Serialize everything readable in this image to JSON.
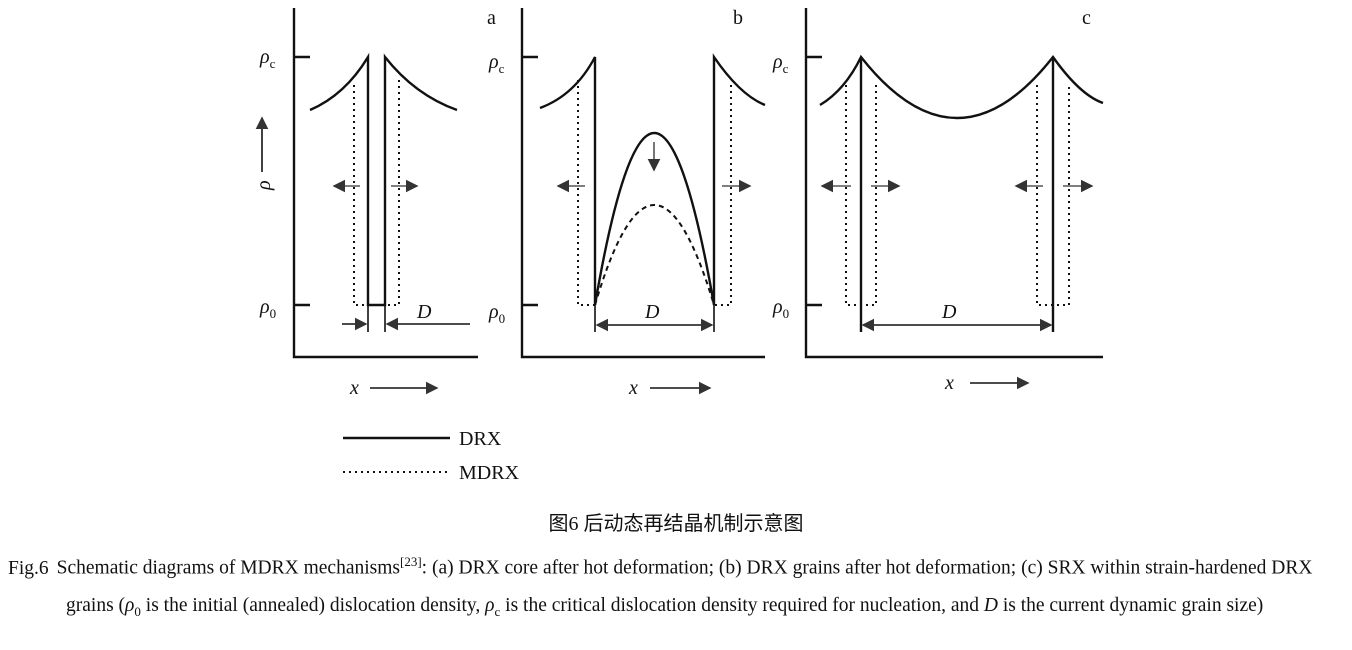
{
  "panels": [
    {
      "label": "a",
      "y_label": "ρ",
      "top_symbol": "ρ",
      "top_sub": "c",
      "bottom_symbol": "ρ",
      "bottom_sub": "0",
      "x_label": "x",
      "size_label": "D"
    },
    {
      "label": "b",
      "top_symbol": "ρ",
      "top_sub": "c",
      "bottom_symbol": "ρ",
      "bottom_sub": "0",
      "x_label": "x",
      "size_label": "D"
    },
    {
      "label": "c",
      "top_symbol": "ρ",
      "top_sub": "c",
      "bottom_symbol": "ρ",
      "bottom_sub": "0",
      "x_label": "x",
      "size_label": "D"
    }
  ],
  "legend": {
    "items": [
      {
        "name": "DRX",
        "style": "solid"
      },
      {
        "name": "MDRX",
        "style": "dotted"
      }
    ]
  },
  "caption_cn": "图6  后动态再结晶机制示意图",
  "caption_en": {
    "prefix": "Fig.6",
    "segments": [
      {
        "text": "Schematic diagrams of MDRX mechanisms",
        "style": "normal"
      },
      {
        "text": "[23]",
        "style": "sup"
      },
      {
        "text": ": (a) DRX core after hot deformation; (b) DRX grains after hot deformation; (c) SRX within strain-hardened DRX grains (",
        "style": "normal"
      },
      {
        "text": "ρ",
        "style": "italic"
      },
      {
        "text": "0",
        "style": "sub"
      },
      {
        "text": " is the initial (annealed) dislocation density, ",
        "style": "normal"
      },
      {
        "text": "ρ",
        "style": "italic"
      },
      {
        "text": "c",
        "style": "sub"
      },
      {
        "text": " is the critical dislocation density required for nucleation, and ",
        "style": "normal"
      },
      {
        "text": "D",
        "style": "italic"
      },
      {
        "text": " is the current dynamic grain size)",
        "style": "normal"
      }
    ]
  }
}
